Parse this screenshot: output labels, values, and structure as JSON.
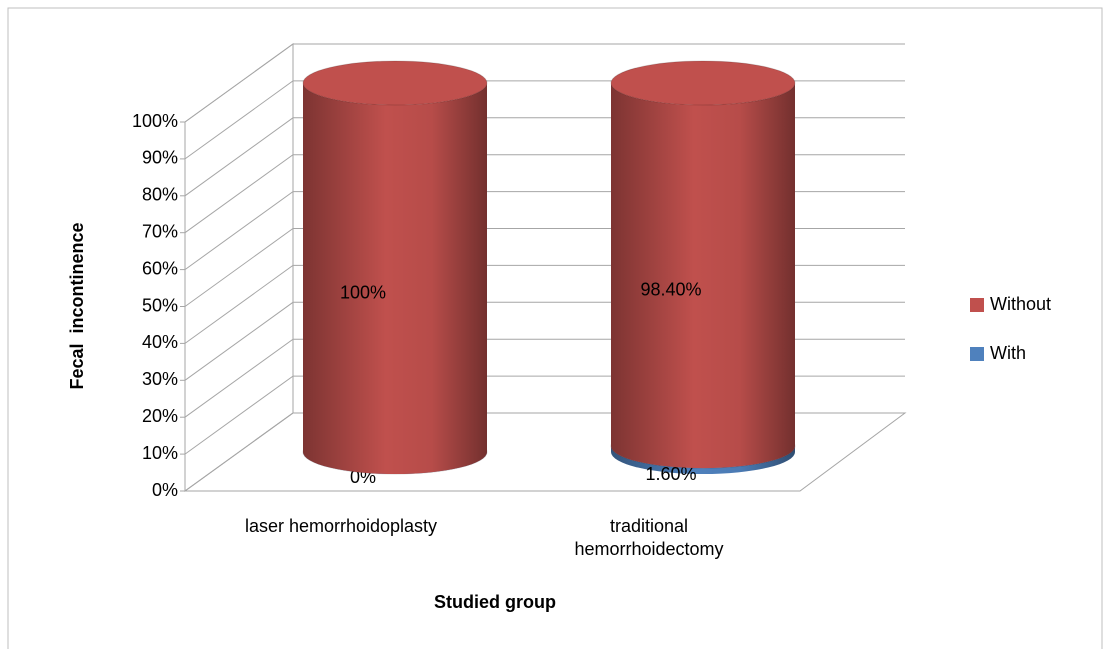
{
  "chart_data": {
    "type": "bar3d_cylinder_stacked",
    "categories": [
      "laser hemorrhoidoplasty",
      "traditional hemorrhoidectomy"
    ],
    "series": [
      {
        "name": "Without",
        "color": "#c0504d",
        "values": [
          100,
          98.4
        ],
        "value_labels": [
          "100%",
          "98.40%"
        ]
      },
      {
        "name": "With",
        "color": "#4f81bd",
        "values": [
          0,
          1.6
        ],
        "value_labels": [
          "0%",
          "1.60%"
        ]
      }
    ],
    "stack_order": [
      "With",
      "Without"
    ],
    "ylabel": "Fecal  incontinence",
    "xlabel": "Studied group",
    "ylim": [
      0,
      100
    ],
    "yticks": [
      {
        "value": 0,
        "label": "0%"
      },
      {
        "value": 10,
        "label": "10%"
      },
      {
        "value": 20,
        "label": "20%"
      },
      {
        "value": 30,
        "label": "30%"
      },
      {
        "value": 40,
        "label": "40%"
      },
      {
        "value": 50,
        "label": "50%"
      },
      {
        "value": 60,
        "label": "60%"
      },
      {
        "value": 70,
        "label": "70%"
      },
      {
        "value": 80,
        "label": "80%"
      },
      {
        "value": 90,
        "label": "90%"
      },
      {
        "value": 100,
        "label": "100%"
      }
    ],
    "grid": true,
    "legend": "right"
  }
}
